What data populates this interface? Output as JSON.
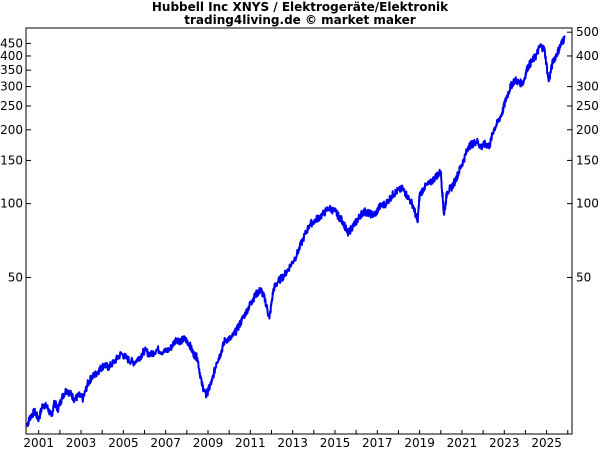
{
  "chart_data": {
    "type": "line",
    "title": "Hubbell Inc XNYS / Elektrogeräte/Elektronik",
    "subtitle": "trading4living.de © market maker",
    "xlabel": "",
    "ylabel": "",
    "scale": "log",
    "grid": false,
    "legend": "none",
    "line_color": "#0000ee",
    "xlim": [
      2000.4,
      2026.2
    ],
    "ylim": [
      11.5,
      520
    ],
    "x_ticks": [
      "2001",
      "2003",
      "2005",
      "2007",
      "2009",
      "2011",
      "2013",
      "2015",
      "2017",
      "2019",
      "2021",
      "2023",
      "2025"
    ],
    "y_ticks_left": [
      "450",
      "400",
      "350",
      "300",
      "250",
      "200",
      "150",
      "100",
      "50"
    ],
    "y_ticks_right": [
      "500",
      "400",
      "300",
      "250",
      "200",
      "150",
      "100",
      "50"
    ],
    "series": [
      {
        "x": [
          2000.45,
          2000.6,
          2000.8,
          2001.0,
          2001.2,
          2001.4,
          2001.6,
          2001.75,
          2001.9,
          2002.1,
          2002.3,
          2002.5,
          2002.7,
          2002.9,
          2003.1,
          2003.3,
          2003.5,
          2003.7,
          2003.9,
          2004.1,
          2004.3,
          2004.6,
          2004.9,
          2005.2,
          2005.5,
          2005.8,
          2006.0,
          2006.3,
          2006.6,
          2006.9,
          2007.2,
          2007.5,
          2007.7,
          2007.9,
          2008.1,
          2008.3,
          2008.5,
          2008.7,
          2008.9,
          2009.0,
          2009.2,
          2009.4,
          2009.6,
          2009.8,
          2010.1,
          2010.4,
          2010.6,
          2010.9,
          2011.1,
          2011.3,
          2011.5,
          2011.7,
          2011.9,
          2012.1,
          2012.3,
          2012.6,
          2012.9,
          2013.2,
          2013.5,
          2013.8,
          2014.1,
          2014.4,
          2014.7,
          2015.0,
          2015.2,
          2015.4,
          2015.6,
          2015.8,
          2016.0,
          2016.2,
          2016.4,
          2016.6,
          2016.9,
          2017.1,
          2017.4,
          2017.7,
          2017.9,
          2018.2,
          2018.4,
          2018.7,
          2018.9,
          2019.0,
          2019.2,
          2019.5,
          2019.8,
          2020.0,
          2020.15,
          2020.3,
          2020.5,
          2020.7,
          2020.9,
          2021.1,
          2021.3,
          2021.5,
          2021.7,
          2021.9,
          2022.1,
          2022.3,
          2022.5,
          2022.7,
          2022.9,
          2023.1,
          2023.3,
          2023.5,
          2023.7,
          2023.9,
          2024.1,
          2024.3,
          2024.5,
          2024.7,
          2024.9,
          2025.1,
          2025.3,
          2025.5,
          2025.7,
          2025.85
        ],
        "y": [
          12.5,
          13.5,
          14.2,
          13.2,
          15.2,
          14.8,
          13.6,
          15.5,
          14.5,
          16.2,
          17.4,
          16.8,
          15.9,
          16.5,
          16.0,
          18.3,
          19.6,
          20.2,
          21.2,
          22.0,
          21.5,
          22.8,
          24.5,
          23.2,
          22.5,
          23.8,
          25.2,
          24.2,
          25.5,
          24.8,
          25.5,
          28.0,
          27.5,
          28.1,
          27.0,
          24.5,
          23.5,
          18.5,
          16.5,
          17.2,
          19.0,
          22.5,
          24.5,
          27.8,
          28.2,
          31.0,
          33.5,
          37.5,
          40.5,
          43.0,
          44.5,
          40.5,
          34.0,
          45.0,
          48.0,
          51.0,
          56.0,
          62.0,
          72.0,
          82.0,
          86.0,
          90.0,
          96.0,
          93.0,
          88.0,
          84.0,
          75.0,
          80.0,
          84.0,
          90.0,
          93.0,
          91.0,
          90.0,
          97.0,
          100.0,
          108.0,
          112.0,
          115.0,
          108.0,
          98.0,
          84.0,
          108.0,
          116.0,
          121.0,
          130.0,
          135.0,
          90.0,
          112.0,
          116.0,
          125.0,
          138.0,
          152.0,
          171.0,
          175.0,
          180.0,
          170.0,
          175.0,
          172.0,
          200.0,
          215.0,
          235.0,
          270.0,
          300.0,
          320.0,
          310.0,
          312.0,
          360.0,
          380.0,
          400.0,
          440.0,
          425.0,
          315.0,
          380.0,
          410.0,
          450.0,
          475.0
        ]
      }
    ]
  }
}
